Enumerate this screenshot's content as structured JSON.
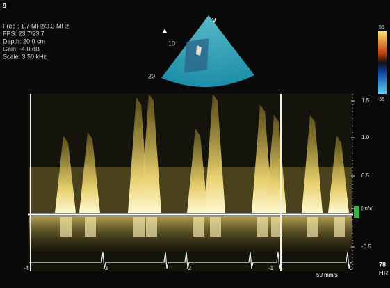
{
  "panel": {
    "number": "9"
  },
  "settings": [
    "Freq : 1.7 MHz/3.3 MHz",
    "FPS: 23.7/23.7",
    "Depth: 20.0 cm",
    "Gain: -4.0 dB",
    "Scale: 3.50 kHz"
  ],
  "sector": {
    "view": "V",
    "depth_labels": [
      "10",
      "20"
    ]
  },
  "color_scale": {
    "top": "56",
    "bottom": "-56"
  },
  "velocity_scale": {
    "labels": [
      "1.5",
      "1.0",
      "0.5",
      "[m/s]",
      "-0.5"
    ]
  },
  "time_scale": {
    "labels": [
      "-4",
      "-3",
      "-2",
      "-1",
      "0"
    ],
    "sweep": "50 mm/s"
  },
  "heart_rate": {
    "value": "78",
    "label": "HR"
  }
}
